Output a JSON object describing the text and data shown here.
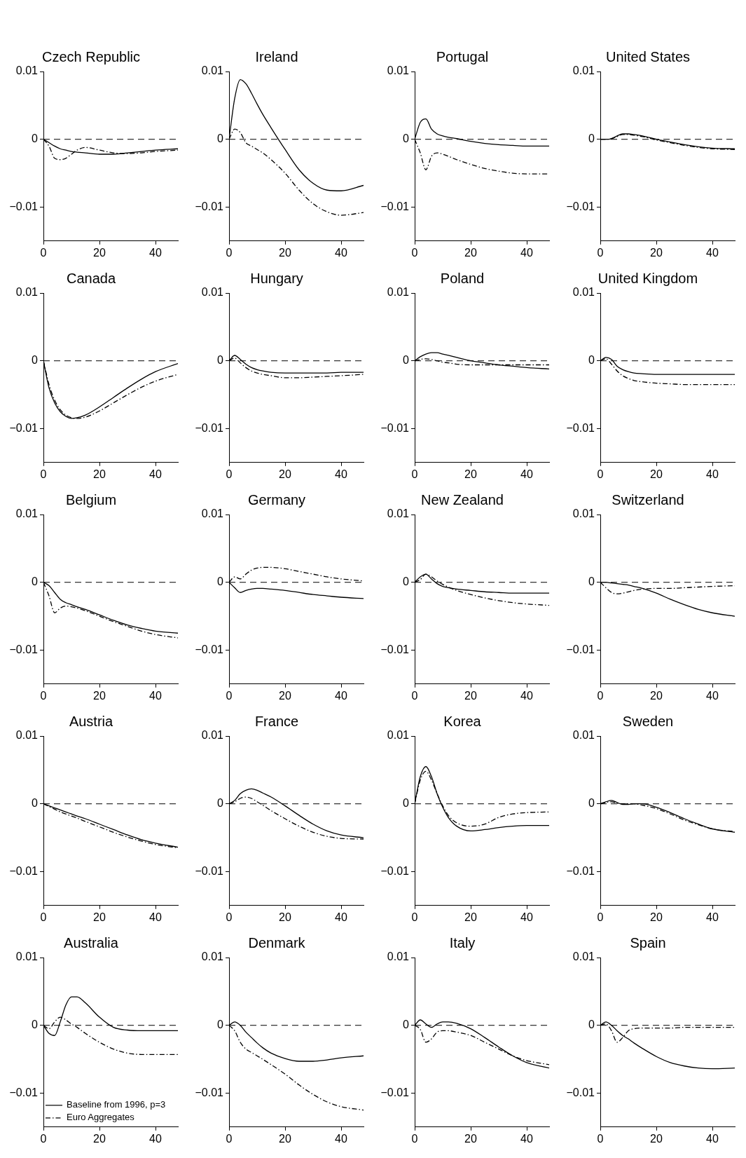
{
  "chart_data": [
    {
      "type": "line",
      "title": "Australia",
      "x": [
        0,
        2,
        4,
        6,
        8,
        10,
        12,
        15,
        20,
        25,
        30,
        35,
        40,
        48
      ],
      "xlim": [
        0,
        48
      ],
      "xticks": [
        0,
        20,
        40
      ],
      "ylim": [
        -0.015,
        0.01
      ],
      "yticks": [
        -0.01,
        0,
        0.01
      ],
      "grid": false,
      "legend": "bottom left",
      "ref_lines": [
        {
          "axis": "y",
          "value": 0,
          "line_style": "dashed"
        }
      ],
      "series": [
        {
          "name": "Baseline from 1996, p=3",
          "color": "#000000",
          "line_style": "solid",
          "values": [
            0,
            -0.0012,
            -0.0015,
            0.0005,
            0.003,
            0.0042,
            0.0042,
            0.0033,
            0.0012,
            -0.0003,
            -0.0007,
            -0.0008,
            -0.0008,
            -0.0008
          ]
        },
        {
          "name": "Euro Aggregates",
          "color": "#000000",
          "line_style": "dashed",
          "values": [
            0,
            -0.0005,
            0.0005,
            0.0012,
            0.0008,
            0.0002,
            -0.0003,
            -0.0012,
            -0.0025,
            -0.0035,
            -0.0041,
            -0.0043,
            -0.0043,
            -0.0043
          ]
        }
      ]
    },
    {
      "type": "line",
      "title": "Austria",
      "x": [
        0,
        2,
        4,
        6,
        8,
        10,
        12,
        15,
        20,
        25,
        30,
        35,
        40,
        48
      ],
      "xlim": [
        0,
        48
      ],
      "xticks": [
        0,
        20,
        40
      ],
      "ylim": [
        -0.015,
        0.01
      ],
      "yticks": [
        -0.01,
        0,
        0.01
      ],
      "grid": false,
      "ref_lines": [
        {
          "axis": "y",
          "value": 0,
          "line_style": "dashed"
        }
      ],
      "series": [
        {
          "color": "#000000",
          "line_style": "solid",
          "values": [
            0,
            -0.0003,
            -0.0006,
            -0.0009,
            -0.0012,
            -0.0015,
            -0.0018,
            -0.0022,
            -0.003,
            -0.0038,
            -0.0046,
            -0.0053,
            -0.0058,
            -0.0064
          ]
        },
        {
          "color": "#000000",
          "line_style": "dashed",
          "values": [
            0,
            -0.0004,
            -0.0008,
            -0.0012,
            -0.0015,
            -0.0018,
            -0.0021,
            -0.0026,
            -0.0034,
            -0.0042,
            -0.0049,
            -0.0055,
            -0.006,
            -0.0065
          ]
        }
      ]
    },
    {
      "type": "line",
      "title": "Belgium",
      "x": [
        0,
        2,
        4,
        6,
        8,
        10,
        12,
        15,
        20,
        25,
        30,
        35,
        40,
        48
      ],
      "xlim": [
        0,
        48
      ],
      "xticks": [
        0,
        20,
        40
      ],
      "ylim": [
        -0.015,
        0.01
      ],
      "yticks": [
        -0.01,
        0,
        0.01
      ],
      "grid": false,
      "ref_lines": [
        {
          "axis": "y",
          "value": 0,
          "line_style": "dashed"
        }
      ],
      "series": [
        {
          "color": "#000000",
          "line_style": "solid",
          "values": [
            0,
            -0.0005,
            -0.0015,
            -0.0025,
            -0.003,
            -0.0033,
            -0.0036,
            -0.004,
            -0.0048,
            -0.0056,
            -0.0063,
            -0.0068,
            -0.0072,
            -0.0075
          ]
        },
        {
          "color": "#000000",
          "line_style": "dashed",
          "values": [
            0,
            -0.002,
            -0.0045,
            -0.0038,
            -0.0035,
            -0.0036,
            -0.0038,
            -0.0042,
            -0.005,
            -0.0058,
            -0.0065,
            -0.0072,
            -0.0077,
            -0.0082
          ]
        }
      ]
    },
    {
      "type": "line",
      "title": "Canada",
      "x": [
        0,
        2,
        4,
        6,
        8,
        10,
        12,
        15,
        20,
        25,
        30,
        35,
        40,
        48
      ],
      "xlim": [
        0,
        48
      ],
      "xticks": [
        0,
        20,
        40
      ],
      "ylim": [
        -0.015,
        0.01
      ],
      "yticks": [
        -0.01,
        0,
        0.01
      ],
      "grid": false,
      "ref_lines": [
        {
          "axis": "y",
          "value": 0,
          "line_style": "dashed"
        }
      ],
      "series": [
        {
          "color": "#000000",
          "line_style": "solid",
          "values": [
            0,
            -0.004,
            -0.0062,
            -0.0075,
            -0.0082,
            -0.0085,
            -0.0084,
            -0.008,
            -0.0068,
            -0.0054,
            -0.004,
            -0.0027,
            -0.0016,
            -0.0004
          ]
        },
        {
          "color": "#000000",
          "line_style": "dashed",
          "values": [
            0,
            -0.0035,
            -0.0058,
            -0.0072,
            -0.008,
            -0.0084,
            -0.0085,
            -0.0083,
            -0.0074,
            -0.0062,
            -0.005,
            -0.0039,
            -0.003,
            -0.002
          ]
        }
      ]
    },
    {
      "type": "line",
      "title": "Czech Republic",
      "x": [
        0,
        2,
        4,
        6,
        8,
        10,
        12,
        15,
        20,
        25,
        30,
        35,
        40,
        48
      ],
      "xlim": [
        0,
        48
      ],
      "xticks": [
        0,
        20,
        40
      ],
      "ylim": [
        -0.015,
        0.01
      ],
      "yticks": [
        -0.01,
        0,
        0.01
      ],
      "grid": false,
      "ref_lines": [
        {
          "axis": "y",
          "value": 0,
          "line_style": "dashed"
        }
      ],
      "series": [
        {
          "color": "#000000",
          "line_style": "solid",
          "values": [
            0,
            -0.0005,
            -0.001,
            -0.0014,
            -0.0016,
            -0.0018,
            -0.0019,
            -0.002,
            -0.0022,
            -0.0022,
            -0.002,
            -0.0018,
            -0.0016,
            -0.0014
          ]
        },
        {
          "color": "#000000",
          "line_style": "dashed",
          "values": [
            0,
            -0.001,
            -0.0028,
            -0.003,
            -0.0028,
            -0.0022,
            -0.0016,
            -0.0012,
            -0.0016,
            -0.002,
            -0.0021,
            -0.002,
            -0.0018,
            -0.0016
          ]
        }
      ]
    },
    {
      "type": "line",
      "title": "Denmark",
      "x": [
        0,
        2,
        4,
        6,
        8,
        10,
        12,
        15,
        20,
        25,
        30,
        35,
        40,
        48
      ],
      "xlim": [
        0,
        48
      ],
      "xticks": [
        0,
        20,
        40
      ],
      "ylim": [
        -0.015,
        0.01
      ],
      "yticks": [
        -0.01,
        0,
        0.01
      ],
      "grid": false,
      "ref_lines": [
        {
          "axis": "y",
          "value": 0,
          "line_style": "dashed"
        }
      ],
      "series": [
        {
          "color": "#000000",
          "line_style": "solid",
          "values": [
            0,
            0.0005,
            0,
            -0.001,
            -0.0018,
            -0.0026,
            -0.0033,
            -0.0041,
            -0.0049,
            -0.0053,
            -0.0053,
            -0.0051,
            -0.0048,
            -0.0045
          ]
        },
        {
          "color": "#000000",
          "line_style": "dashed",
          "values": [
            0,
            -0.0008,
            -0.0025,
            -0.0035,
            -0.004,
            -0.0045,
            -0.005,
            -0.0058,
            -0.0072,
            -0.0088,
            -0.0102,
            -0.0113,
            -0.012,
            -0.0125
          ]
        }
      ]
    },
    {
      "type": "line",
      "title": "France",
      "x": [
        0,
        2,
        4,
        6,
        8,
        10,
        12,
        15,
        20,
        25,
        30,
        35,
        40,
        48
      ],
      "xlim": [
        0,
        48
      ],
      "xticks": [
        0,
        20,
        40
      ],
      "ylim": [
        -0.015,
        0.01
      ],
      "yticks": [
        -0.01,
        0,
        0.01
      ],
      "grid": false,
      "ref_lines": [
        {
          "axis": "y",
          "value": 0,
          "line_style": "dashed"
        }
      ],
      "series": [
        {
          "color": "#000000",
          "line_style": "solid",
          "values": [
            0,
            0.0005,
            0.0015,
            0.002,
            0.0022,
            0.002,
            0.0016,
            0.001,
            -0.0003,
            -0.0017,
            -0.003,
            -0.004,
            -0.0046,
            -0.005
          ]
        },
        {
          "color": "#000000",
          "line_style": "dashed",
          "values": [
            0,
            0.0003,
            0.0008,
            0.001,
            0.0008,
            0.0003,
            -0.0002,
            -0.001,
            -0.0022,
            -0.0033,
            -0.0042,
            -0.0048,
            -0.0051,
            -0.0052
          ]
        }
      ]
    },
    {
      "type": "line",
      "title": "Germany",
      "x": [
        0,
        2,
        4,
        6,
        8,
        10,
        12,
        15,
        20,
        25,
        30,
        35,
        40,
        48
      ],
      "xlim": [
        0,
        48
      ],
      "xticks": [
        0,
        20,
        40
      ],
      "ylim": [
        -0.015,
        0.01
      ],
      "yticks": [
        -0.01,
        0,
        0.01
      ],
      "grid": false,
      "ref_lines": [
        {
          "axis": "y",
          "value": 0,
          "line_style": "dashed"
        }
      ],
      "series": [
        {
          "color": "#000000",
          "line_style": "solid",
          "values": [
            0,
            -0.0008,
            -0.0015,
            -0.0012,
            -0.001,
            -0.0009,
            -0.0009,
            -0.001,
            -0.0012,
            -0.0015,
            -0.0018,
            -0.002,
            -0.0022,
            -0.0024
          ]
        },
        {
          "color": "#000000",
          "line_style": "dashed",
          "values": [
            0,
            0.0008,
            0.0005,
            0.0012,
            0.0018,
            0.0021,
            0.0022,
            0.0022,
            0.002,
            0.0016,
            0.0012,
            0.0008,
            0.0005,
            0.0002
          ]
        }
      ]
    },
    {
      "type": "line",
      "title": "Hungary",
      "x": [
        0,
        2,
        4,
        6,
        8,
        10,
        12,
        15,
        20,
        25,
        30,
        35,
        40,
        48
      ],
      "xlim": [
        0,
        48
      ],
      "xticks": [
        0,
        20,
        40
      ],
      "ylim": [
        -0.015,
        0.01
      ],
      "yticks": [
        -0.01,
        0,
        0.01
      ],
      "grid": false,
      "ref_lines": [
        {
          "axis": "y",
          "value": 0,
          "line_style": "dashed"
        }
      ],
      "series": [
        {
          "color": "#000000",
          "line_style": "solid",
          "values": [
            0,
            0.0008,
            0.0002,
            -0.0005,
            -0.001,
            -0.0013,
            -0.0015,
            -0.0017,
            -0.0018,
            -0.0018,
            -0.0018,
            -0.0018,
            -0.0017,
            -0.0017
          ]
        },
        {
          "color": "#000000",
          "line_style": "dashed",
          "values": [
            0,
            0.0004,
            -0.0003,
            -0.001,
            -0.0015,
            -0.0018,
            -0.002,
            -0.0022,
            -0.0025,
            -0.0025,
            -0.0024,
            -0.0023,
            -0.0022,
            -0.002
          ]
        }
      ]
    },
    {
      "type": "line",
      "title": "Ireland",
      "x": [
        0,
        2,
        4,
        6,
        8,
        10,
        12,
        15,
        20,
        25,
        30,
        35,
        40,
        48
      ],
      "xlim": [
        0,
        48
      ],
      "xticks": [
        0,
        20,
        40
      ],
      "ylim": [
        -0.015,
        0.01
      ],
      "yticks": [
        -0.01,
        0,
        0.01
      ],
      "grid": false,
      "ref_lines": [
        {
          "axis": "y",
          "value": 0,
          "line_style": "dashed"
        }
      ],
      "series": [
        {
          "color": "#000000",
          "line_style": "solid",
          "values": [
            0,
            0.006,
            0.0088,
            0.0082,
            0.0068,
            0.0052,
            0.0037,
            0.0017,
            -0.0015,
            -0.0045,
            -0.0065,
            -0.0075,
            -0.0076,
            -0.0068
          ]
        },
        {
          "color": "#000000",
          "line_style": "dashed",
          "values": [
            0,
            0.0015,
            0.001,
            -0.0005,
            -0.001,
            -0.0015,
            -0.002,
            -0.003,
            -0.005,
            -0.0075,
            -0.0095,
            -0.0107,
            -0.0112,
            -0.0108
          ]
        }
      ]
    },
    {
      "type": "line",
      "title": "Italy",
      "x": [
        0,
        2,
        4,
        6,
        8,
        10,
        12,
        15,
        20,
        25,
        30,
        35,
        40,
        48
      ],
      "xlim": [
        0,
        48
      ],
      "xticks": [
        0,
        20,
        40
      ],
      "ylim": [
        -0.015,
        0.01
      ],
      "yticks": [
        -0.01,
        0,
        0.01
      ],
      "grid": false,
      "ref_lines": [
        {
          "axis": "y",
          "value": 0,
          "line_style": "dashed"
        }
      ],
      "series": [
        {
          "color": "#000000",
          "line_style": "solid",
          "values": [
            0,
            0.0008,
            0.0002,
            -0.0003,
            0.0002,
            0.0005,
            0.0005,
            0.0003,
            -0.0005,
            -0.0018,
            -0.0032,
            -0.0045,
            -0.0055,
            -0.0063
          ]
        },
        {
          "color": "#000000",
          "line_style": "dashed",
          "values": [
            0,
            -0.0006,
            -0.0025,
            -0.002,
            -0.001,
            -0.0008,
            -0.0008,
            -0.001,
            -0.0015,
            -0.0025,
            -0.0035,
            -0.0045,
            -0.0052,
            -0.0058
          ]
        }
      ]
    },
    {
      "type": "line",
      "title": "Korea",
      "x": [
        0,
        2,
        4,
        6,
        8,
        10,
        12,
        15,
        20,
        25,
        30,
        35,
        40,
        48
      ],
      "xlim": [
        0,
        48
      ],
      "xticks": [
        0,
        20,
        40
      ],
      "ylim": [
        -0.015,
        0.01
      ],
      "yticks": [
        -0.01,
        0,
        0.01
      ],
      "grid": false,
      "ref_lines": [
        {
          "axis": "y",
          "value": 0,
          "line_style": "dashed"
        }
      ],
      "series": [
        {
          "color": "#000000",
          "line_style": "solid",
          "values": [
            0,
            0.004,
            0.0055,
            0.004,
            0.0015,
            -0.0005,
            -0.002,
            -0.0033,
            -0.004,
            -0.0038,
            -0.0035,
            -0.0033,
            -0.0032,
            -0.0032
          ]
        },
        {
          "color": "#000000",
          "line_style": "dashed",
          "values": [
            0,
            0.0035,
            0.0048,
            0.0035,
            0.0015,
            -0.0003,
            -0.0017,
            -0.0028,
            -0.0033,
            -0.003,
            -0.002,
            -0.0015,
            -0.0013,
            -0.0012
          ]
        }
      ]
    },
    {
      "type": "line",
      "title": "New Zealand",
      "x": [
        0,
        2,
        4,
        6,
        8,
        10,
        12,
        15,
        20,
        25,
        30,
        35,
        40,
        48
      ],
      "xlim": [
        0,
        48
      ],
      "xticks": [
        0,
        20,
        40
      ],
      "ylim": [
        -0.015,
        0.01
      ],
      "yticks": [
        -0.01,
        0,
        0.01
      ],
      "grid": false,
      "ref_lines": [
        {
          "axis": "y",
          "value": 0,
          "line_style": "dashed"
        }
      ],
      "series": [
        {
          "color": "#000000",
          "line_style": "solid",
          "values": [
            0,
            0.0008,
            0.0012,
            0.0005,
            -0.0002,
            -0.0006,
            -0.0008,
            -0.001,
            -0.0012,
            -0.0014,
            -0.0015,
            -0.0016,
            -0.0016,
            -0.0016
          ]
        },
        {
          "color": "#000000",
          "line_style": "dashed",
          "values": [
            0,
            0.0004,
            0.0012,
            0.0008,
            0.0002,
            -0.0003,
            -0.0007,
            -0.0012,
            -0.0018,
            -0.0023,
            -0.0027,
            -0.003,
            -0.0032,
            -0.0034
          ]
        }
      ]
    },
    {
      "type": "line",
      "title": "Poland",
      "x": [
        0,
        2,
        4,
        6,
        8,
        10,
        12,
        15,
        20,
        25,
        30,
        35,
        40,
        48
      ],
      "xlim": [
        0,
        48
      ],
      "xticks": [
        0,
        20,
        40
      ],
      "ylim": [
        -0.015,
        0.01
      ],
      "yticks": [
        -0.01,
        0,
        0.01
      ],
      "grid": false,
      "ref_lines": [
        {
          "axis": "y",
          "value": 0,
          "line_style": "dashed"
        }
      ],
      "series": [
        {
          "color": "#000000",
          "line_style": "solid",
          "values": [
            0,
            0.0006,
            0.001,
            0.0012,
            0.0012,
            0.001,
            0.0008,
            0.0005,
            0,
            -0.0003,
            -0.0006,
            -0.0008,
            -0.001,
            -0.0012
          ]
        },
        {
          "color": "#000000",
          "line_style": "dashed",
          "values": [
            0,
            0.0002,
            0.0003,
            0.0002,
            0,
            -0.0002,
            -0.0003,
            -0.0005,
            -0.0006,
            -0.0006,
            -0.0006,
            -0.0006,
            -0.0006,
            -0.0006
          ]
        }
      ]
    },
    {
      "type": "line",
      "title": "Portugal",
      "x": [
        0,
        2,
        4,
        6,
        8,
        10,
        12,
        15,
        20,
        25,
        30,
        35,
        40,
        48
      ],
      "xlim": [
        0,
        48
      ],
      "xticks": [
        0,
        20,
        40
      ],
      "ylim": [
        -0.015,
        0.01
      ],
      "yticks": [
        -0.01,
        0,
        0.01
      ],
      "grid": false,
      "ref_lines": [
        {
          "axis": "y",
          "value": 0,
          "line_style": "dashed"
        }
      ],
      "series": [
        {
          "color": "#000000",
          "line_style": "solid",
          "values": [
            0,
            0.0025,
            0.003,
            0.0015,
            0.0008,
            0.0005,
            0.0003,
            0.0001,
            -0.0003,
            -0.0006,
            -0.0008,
            -0.0009,
            -0.001,
            -0.001
          ]
        },
        {
          "color": "#000000",
          "line_style": "dashed",
          "values": [
            0,
            -0.002,
            -0.0045,
            -0.0025,
            -0.002,
            -0.0022,
            -0.0025,
            -0.003,
            -0.0037,
            -0.0043,
            -0.0047,
            -0.005,
            -0.0051,
            -0.0051
          ]
        }
      ]
    },
    {
      "type": "line",
      "title": "Spain",
      "x": [
        0,
        2,
        4,
        6,
        8,
        10,
        12,
        15,
        20,
        25,
        30,
        35,
        40,
        48
      ],
      "xlim": [
        0,
        48
      ],
      "xticks": [
        0,
        20,
        40
      ],
      "ylim": [
        -0.015,
        0.01
      ],
      "yticks": [
        -0.01,
        0,
        0.01
      ],
      "grid": false,
      "ref_lines": [
        {
          "axis": "y",
          "value": 0,
          "line_style": "dashed"
        }
      ],
      "series": [
        {
          "color": "#000000",
          "line_style": "solid",
          "values": [
            0,
            0.0005,
            0,
            -0.0008,
            -0.0015,
            -0.002,
            -0.0026,
            -0.0034,
            -0.0046,
            -0.0055,
            -0.006,
            -0.0063,
            -0.0064,
            -0.0063
          ]
        },
        {
          "color": "#000000",
          "line_style": "dashed",
          "values": [
            0,
            0.0002,
            -0.0008,
            -0.0025,
            -0.0018,
            -0.0008,
            -0.0005,
            -0.0004,
            -0.0004,
            -0.0004,
            -0.0003,
            -0.0003,
            -0.0003,
            -0.0003
          ]
        }
      ]
    },
    {
      "type": "line",
      "title": "Sweden",
      "x": [
        0,
        2,
        4,
        6,
        8,
        10,
        12,
        15,
        20,
        25,
        30,
        35,
        40,
        48
      ],
      "xlim": [
        0,
        48
      ],
      "xticks": [
        0,
        20,
        40
      ],
      "ylim": [
        -0.015,
        0.01
      ],
      "yticks": [
        -0.01,
        0,
        0.01
      ],
      "grid": false,
      "ref_lines": [
        {
          "axis": "y",
          "value": 0,
          "line_style": "dashed"
        }
      ],
      "series": [
        {
          "color": "#000000",
          "line_style": "solid",
          "values": [
            0,
            0.0003,
            0.0005,
            0.0002,
            -0.0001,
            -0.0001,
            0,
            0,
            -0.0005,
            -0.0013,
            -0.0022,
            -0.003,
            -0.0037,
            -0.0042
          ]
        },
        {
          "color": "#000000",
          "line_style": "dashed",
          "values": [
            0,
            0.0002,
            0.0003,
            0.0001,
            0,
            0,
            0,
            -0.0002,
            -0.0007,
            -0.0015,
            -0.0024,
            -0.0031,
            -0.0037,
            -0.0041
          ]
        }
      ]
    },
    {
      "type": "line",
      "title": "Switzerland",
      "x": [
        0,
        2,
        4,
        6,
        8,
        10,
        12,
        15,
        20,
        25,
        30,
        35,
        40,
        48
      ],
      "xlim": [
        0,
        48
      ],
      "xticks": [
        0,
        20,
        40
      ],
      "ylim": [
        -0.015,
        0.01
      ],
      "yticks": [
        -0.01,
        0,
        0.01
      ],
      "grid": false,
      "ref_lines": [
        {
          "axis": "y",
          "value": 0,
          "line_style": "dashed"
        }
      ],
      "series": [
        {
          "color": "#000000",
          "line_style": "solid",
          "values": [
            0,
            0,
            -0.0001,
            -0.0002,
            -0.0003,
            -0.0004,
            -0.0006,
            -0.0009,
            -0.0016,
            -0.0025,
            -0.0033,
            -0.004,
            -0.0045,
            -0.005
          ]
        },
        {
          "color": "#000000",
          "line_style": "dashed",
          "values": [
            0,
            -0.0008,
            -0.0015,
            -0.0017,
            -0.0016,
            -0.0014,
            -0.0012,
            -0.001,
            -0.0009,
            -0.0009,
            -0.0008,
            -0.0007,
            -0.0006,
            -0.0005
          ]
        }
      ]
    },
    {
      "type": "line",
      "title": "United Kingdom",
      "x": [
        0,
        2,
        4,
        6,
        8,
        10,
        12,
        15,
        20,
        25,
        30,
        35,
        40,
        48
      ],
      "xlim": [
        0,
        48
      ],
      "xticks": [
        0,
        20,
        40
      ],
      "ylim": [
        -0.015,
        0.01
      ],
      "yticks": [
        -0.01,
        0,
        0.01
      ],
      "grid": false,
      "ref_lines": [
        {
          "axis": "y",
          "value": 0,
          "line_style": "dashed"
        }
      ],
      "series": [
        {
          "color": "#000000",
          "line_style": "solid",
          "values": [
            0,
            0.0005,
            0.0002,
            -0.0008,
            -0.0013,
            -0.0016,
            -0.0018,
            -0.0019,
            -0.002,
            -0.002,
            -0.002,
            -0.002,
            -0.002,
            -0.002
          ]
        },
        {
          "color": "#000000",
          "line_style": "dashed",
          "values": [
            0,
            0.0003,
            -0.0005,
            -0.0015,
            -0.0022,
            -0.0026,
            -0.0029,
            -0.0031,
            -0.0033,
            -0.0034,
            -0.0035,
            -0.0035,
            -0.0035,
            -0.0035
          ]
        }
      ]
    },
    {
      "type": "line",
      "title": "United States",
      "x": [
        0,
        2,
        4,
        6,
        8,
        10,
        12,
        15,
        20,
        25,
        30,
        35,
        40,
        48
      ],
      "xlim": [
        0,
        48
      ],
      "xticks": [
        0,
        20,
        40
      ],
      "ylim": [
        -0.015,
        0.01
      ],
      "yticks": [
        -0.01,
        0,
        0.01
      ],
      "grid": false,
      "ref_lines": [
        {
          "axis": "y",
          "value": 0,
          "line_style": "dashed"
        }
      ],
      "series": [
        {
          "color": "#000000",
          "line_style": "solid",
          "values": [
            0,
            0,
            0.0001,
            0.0005,
            0.0008,
            0.0008,
            0.0007,
            0.0005,
            0,
            -0.0004,
            -0.0008,
            -0.0011,
            -0.0013,
            -0.0014
          ]
        },
        {
          "color": "#000000",
          "line_style": "dashed",
          "values": [
            0,
            0,
            0.0001,
            0.0004,
            0.0007,
            0.0007,
            0.0006,
            0.0004,
            -0.0001,
            -0.0005,
            -0.0009,
            -0.0012,
            -0.0014,
            -0.0015
          ]
        }
      ]
    }
  ]
}
